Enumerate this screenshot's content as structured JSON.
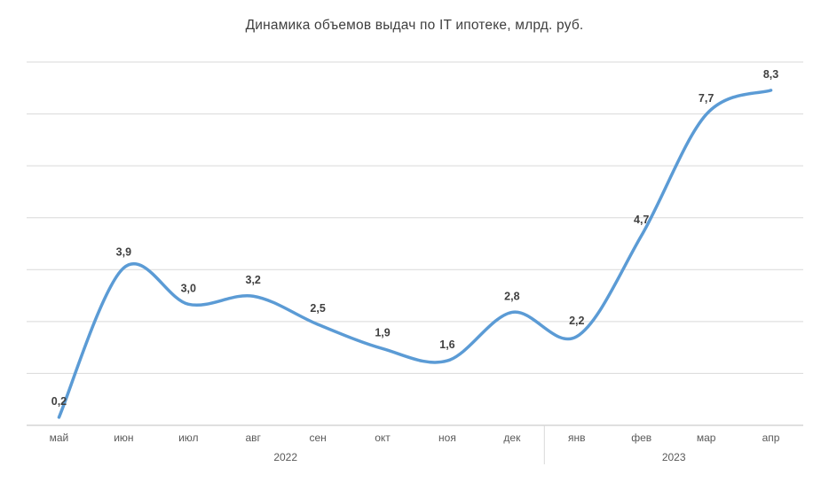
{
  "chart_data": {
    "type": "line",
    "title": "Динамика объемов выдач по IT ипотеке, млрд. руб.",
    "categories": [
      "май",
      "июн",
      "июл",
      "авг",
      "сен",
      "окт",
      "ноя",
      "дек",
      "янв",
      "фев",
      "мар",
      "апр"
    ],
    "values": [
      0.2,
      3.9,
      3.0,
      3.2,
      2.5,
      1.9,
      1.6,
      2.8,
      2.2,
      4.7,
      7.7,
      8.3
    ],
    "value_labels": [
      "0,2",
      "3,9",
      "3,0",
      "3,2",
      "2,5",
      "1,9",
      "1,6",
      "2,8",
      "2,2",
      "4,7",
      "7,7",
      "8,3"
    ],
    "year_groups": [
      {
        "label": "2022",
        "from": 0,
        "to": 7
      },
      {
        "label": "2023",
        "from": 8,
        "to": 11
      }
    ],
    "ylim": [
      0,
      9
    ],
    "grid": true,
    "legend": "none",
    "line_color": "#5B9BD5",
    "grid_color": "#d9d9d9",
    "axis_color": "#bfbfbf",
    "label_color": "#404040"
  }
}
